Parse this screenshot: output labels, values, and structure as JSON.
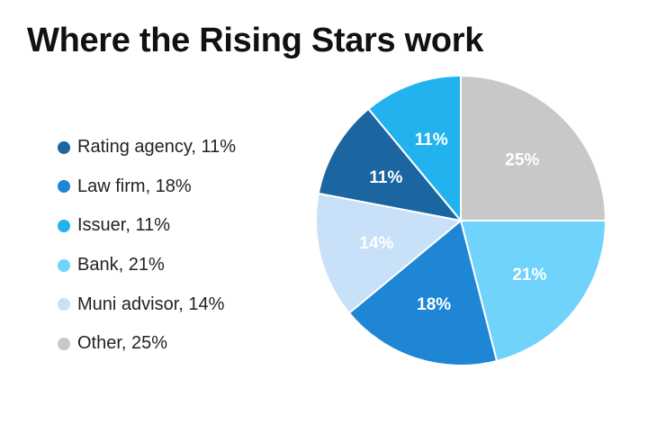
{
  "chart_data": {
    "type": "pie",
    "title": "Where the Rising Stars work",
    "legend_position": "left",
    "legend": [
      "Rating agency, 11%",
      "Law firm, 18%",
      "Issuer, 11%",
      "Bank, 21%",
      "Muni advisor, 14%",
      "Other, 25%"
    ],
    "slices": [
      {
        "name": "Other",
        "value": 25,
        "label": "25%",
        "color": "#c8c8ca"
      },
      {
        "name": "Bank",
        "value": 21,
        "label": "21%",
        "color": "#6fd3fc"
      },
      {
        "name": "Law firm",
        "value": 18,
        "label": "18%",
        "color": "#1e86d4"
      },
      {
        "name": "Muni advisor",
        "value": 14,
        "label": "14%",
        "color": "#c8e0f8"
      },
      {
        "name": "Rating agency",
        "value": 11,
        "label": "11%",
        "color": "#1b65a0"
      },
      {
        "name": "Issuer",
        "value": 11,
        "label": "11%",
        "color": "#22b3ef"
      }
    ],
    "legend_colors": [
      "#1b65a0",
      "#1e86d4",
      "#22b3ef",
      "#6fd3fc",
      "#c8e0f8",
      "#c8c8ca"
    ]
  }
}
